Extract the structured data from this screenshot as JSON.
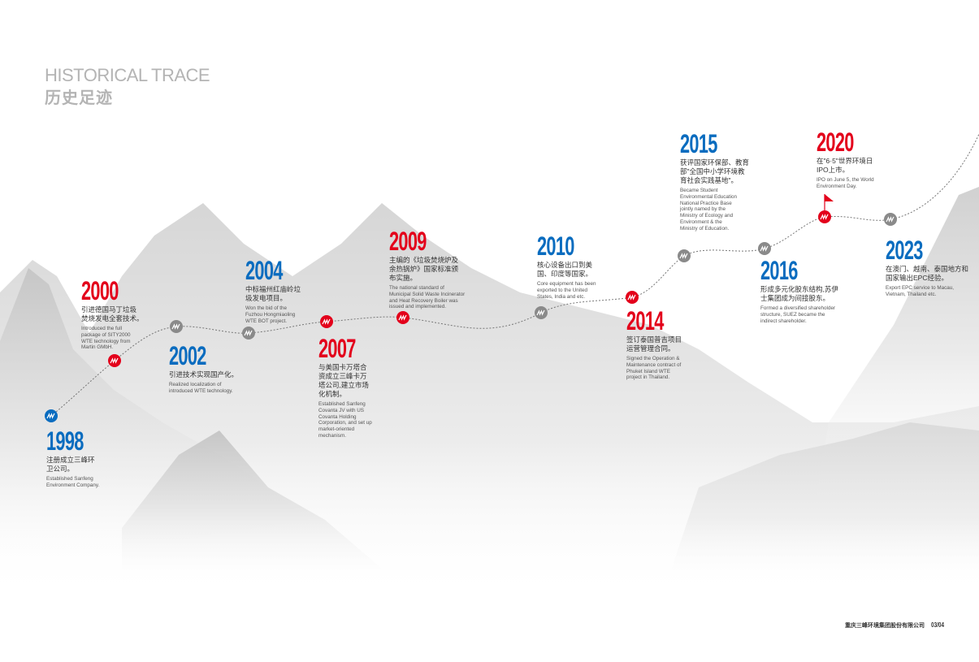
{
  "header": {
    "title_en": "HISTORICAL TRACE",
    "title_cn": "历史足迹"
  },
  "colors": {
    "red": "#e3001b",
    "blue": "#0a6cbf",
    "gray": "#8a8a8a",
    "title": "#b4b4b4"
  },
  "entries": [
    {
      "year": "1998",
      "color": "blue",
      "cn": [
        "注册成立三峰环",
        "卫公司。"
      ],
      "en": [
        "Established Sanfeng",
        "Environment Company."
      ]
    },
    {
      "year": "2000",
      "color": "red",
      "cn": [
        "引进德国马丁垃圾",
        "焚烧发电全套技术。"
      ],
      "en": [
        "Introduced the full",
        "package of SITY2000",
        "WTE technology from",
        "Martin GMbH."
      ]
    },
    {
      "year": "2002",
      "color": "blue",
      "cn": [
        "引进技术实现国产化。"
      ],
      "en": [
        "Realized localization of",
        "introduced WTE technology."
      ]
    },
    {
      "year": "2004",
      "color": "blue",
      "cn": [
        "中标福州红庙岭垃",
        "圾发电项目。"
      ],
      "en": [
        "Won the bid of the",
        "Fuzhou Hongmiaoling",
        "WTE BOT project."
      ]
    },
    {
      "year": "2007",
      "color": "red",
      "cn": [
        "与美国卡万塔合",
        "资成立三峰卡万",
        "塔公司,建立市场",
        "化机制。"
      ],
      "en": [
        "Established Sanfeng",
        "Covanta JV with US",
        "Covanta Holding",
        "Corporation, and set up",
        "market-oriented",
        "mechanism."
      ]
    },
    {
      "year": "2009",
      "color": "red",
      "cn": [
        "主编的《垃圾焚烧炉及",
        "余热锅炉》国家标准颁",
        "布实施。"
      ],
      "en": [
        "The national standard of",
        "Municipal Solid Waste Incinerator",
        "and Heat Recovery Boiler was",
        "issued and implemented."
      ]
    },
    {
      "year": "2010",
      "color": "blue",
      "cn": [
        "核心设备出口到美",
        "国、印度等国家。"
      ],
      "en": [
        "Core equipment has been",
        "exported to the United",
        "States, India and etc."
      ]
    },
    {
      "year": "2014",
      "color": "red",
      "cn": [
        "签订泰国普吉项目",
        "运营管理合同。"
      ],
      "en": [
        "Signed the Operation &",
        "Maintenance contract of",
        "Phuket Island WTE",
        "project in Thailand."
      ]
    },
    {
      "year": "2015",
      "color": "blue",
      "cn": [
        "获评国家环保部、教育",
        "部\"全国中小学环境教",
        "育社会实践基地\"。"
      ],
      "en": [
        "Became Student",
        "Environmental Education",
        "National Practice Base",
        "jointly named by the",
        "Ministry of Ecology and",
        "Environment & the",
        "Ministry of Education."
      ]
    },
    {
      "year": "2016",
      "color": "blue",
      "cn": [
        "形成多元化股东结构,苏伊",
        "士集团成为间接股东。"
      ],
      "en": [
        "Formed a diversified shareholder",
        "structure, SUEZ became the",
        "indirect shareholder."
      ]
    },
    {
      "year": "2020",
      "color": "red",
      "cn": [
        "在\"6·5\"世界环境日",
        "IPO上市。"
      ],
      "en": [
        "IPO on June 5, the World",
        "Environment Day."
      ]
    },
    {
      "year": "2023",
      "color": "blue",
      "cn": [
        "在澳门、越南、泰国地方和",
        "国家输出EPC经验。"
      ],
      "en": [
        "Export EPC service to Macau,",
        "Vietnam, Thailand etc."
      ]
    }
  ],
  "nodes": [
    {
      "year": "1998",
      "color": "blue"
    },
    {
      "year": "2000",
      "color": "red"
    },
    {
      "year": "2002",
      "color": "gray"
    },
    {
      "year": "2004",
      "color": "gray"
    },
    {
      "year": "2007",
      "color": "red"
    },
    {
      "year": "2009",
      "color": "red"
    },
    {
      "year": "2010",
      "color": "gray"
    },
    {
      "year": "2014",
      "color": "red"
    },
    {
      "year": "2015",
      "color": "gray"
    },
    {
      "year": "2016",
      "color": "gray"
    },
    {
      "year": "2020",
      "color": "red",
      "flag": true
    },
    {
      "year": "2023",
      "color": "gray"
    }
  ],
  "footer": {
    "company": "重庆三峰环境集团股份有限公司",
    "page": "03/04"
  }
}
